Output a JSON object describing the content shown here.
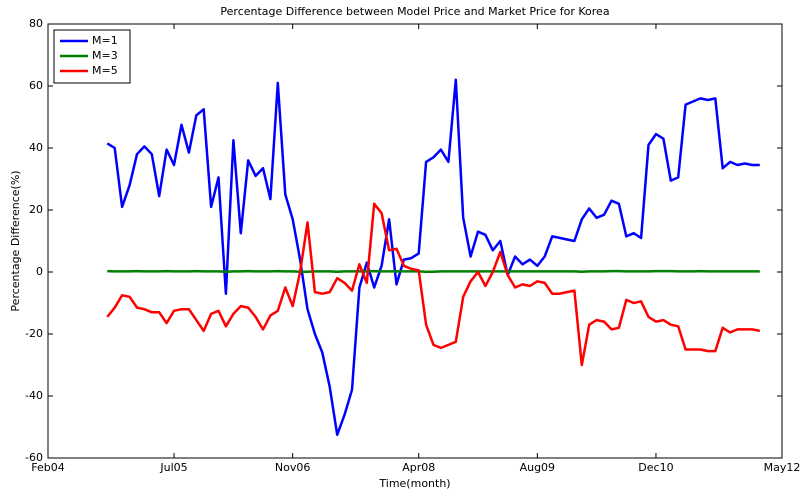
{
  "chart_data": {
    "type": "line",
    "title": "Percentage Difference between Model Price and Market Price for Korea",
    "xlabel": "Time(month)",
    "ylabel": "Percentage Difference(%)",
    "x": [
      "2004-10",
      "2004-11",
      "2004-12",
      "2005-01",
      "2005-02",
      "2005-03",
      "2005-04",
      "2005-05",
      "2005-06",
      "2005-07",
      "2005-08",
      "2005-09",
      "2005-10",
      "2005-11",
      "2005-12",
      "2006-01",
      "2006-02",
      "2006-03",
      "2006-04",
      "2006-05",
      "2006-06",
      "2006-07",
      "2006-08",
      "2006-09",
      "2006-10",
      "2006-11",
      "2006-12",
      "2007-01",
      "2007-02",
      "2007-03",
      "2007-04",
      "2007-05",
      "2007-06",
      "2007-07",
      "2007-08",
      "2007-09",
      "2007-10",
      "2007-11",
      "2007-12",
      "2008-01",
      "2008-02",
      "2008-03",
      "2008-04",
      "2008-05",
      "2008-06",
      "2008-07",
      "2008-08",
      "2008-09",
      "2008-10",
      "2008-11",
      "2008-12",
      "2009-01",
      "2009-02",
      "2009-03",
      "2009-04",
      "2009-05",
      "2009-06",
      "2009-07",
      "2009-08",
      "2009-09",
      "2009-10",
      "2009-11",
      "2009-12",
      "2010-01",
      "2010-02",
      "2010-03",
      "2010-04",
      "2010-05",
      "2010-06",
      "2010-07",
      "2010-08",
      "2010-09",
      "2010-10",
      "2010-11",
      "2010-12",
      "2011-01",
      "2011-02",
      "2011-03",
      "2011-04",
      "2011-05",
      "2011-06",
      "2011-07",
      "2011-08",
      "2011-09",
      "2011-10",
      "2011-11",
      "2011-12",
      "2012-01",
      "2012-02"
    ],
    "series": [
      {
        "name": "M=1",
        "color": "#0000ff",
        "values": [
          41.5,
          40,
          21,
          28,
          38,
          40.5,
          38,
          24.5,
          39.5,
          34.5,
          47.5,
          38.5,
          50.5,
          52.5,
          21,
          30.5,
          -7,
          42.5,
          12.5,
          36,
          31,
          33.5,
          23.5,
          61,
          25,
          17,
          4,
          -12,
          -20,
          -26,
          -37,
          -52.5,
          -46,
          -38,
          -5,
          3,
          -5,
          2,
          17,
          -4,
          4,
          4.5,
          6,
          35.5,
          37,
          39.5,
          35.5,
          62,
          17.5,
          5,
          13,
          12,
          7,
          10,
          -1,
          5,
          2.5,
          4,
          2,
          5,
          11.5,
          11,
          10.5,
          10,
          17,
          20.5,
          17.5,
          18.5,
          23,
          22,
          11.5,
          12.5,
          11,
          41,
          44.5,
          43,
          29.5,
          30.5,
          54,
          55,
          56,
          55.5,
          56,
          33.5,
          35.5,
          34.5,
          35,
          34.5,
          34.5
        ]
      },
      {
        "name": "M=3",
        "color": "#008000",
        "values": [
          0.3,
          0.2,
          0.2,
          0.2,
          0.3,
          0.2,
          0.2,
          0.2,
          0.3,
          0.2,
          0.2,
          0.2,
          0.3,
          0.2,
          0.2,
          0.2,
          0.1,
          0.2,
          0.2,
          0.3,
          0.2,
          0.2,
          0.2,
          0.3,
          0.2,
          0.2,
          0.1,
          0.1,
          0.2,
          0.2,
          0.2,
          0.1,
          0.2,
          0.2,
          0.2,
          0.2,
          0.3,
          0.2,
          0.2,
          0.2,
          0.2,
          0.2,
          0.2,
          0.1,
          0.1,
          0.2,
          0.2,
          0.2,
          0.2,
          0.2,
          0.2,
          0.2,
          0.2,
          0.2,
          0.2,
          0.2,
          0.2,
          0.2,
          0.2,
          0.2,
          0.2,
          0.2,
          0.2,
          0.2,
          0.1,
          0.2,
          0.2,
          0.2,
          0.3,
          0.3,
          0.2,
          0.2,
          0.2,
          0.2,
          0.3,
          0.3,
          0.3,
          0.2,
          0.2,
          0.2,
          0.3,
          0.2,
          0.2,
          0.2,
          0.2,
          0.2,
          0.2,
          0.2,
          0.2
        ]
      },
      {
        "name": "M=5",
        "color": "#ff0000",
        "values": [
          -14.5,
          -11.5,
          -7.5,
          -8,
          -11.5,
          -12,
          -13,
          -13,
          -16.5,
          -12.5,
          -12,
          -12,
          -15.5,
          -19,
          -13.5,
          -12.5,
          -17.5,
          -13.5,
          -11,
          -11.5,
          -14.5,
          -18.5,
          -14,
          -12.5,
          -5,
          -11,
          0,
          16,
          -6.5,
          -7,
          -6.5,
          -2,
          -3.5,
          -6,
          2.5,
          -3.5,
          22,
          19,
          7,
          7.5,
          2,
          1,
          0.5,
          -17,
          -23.5,
          -24.5,
          -23.5,
          -22.5,
          -8,
          -3,
          0,
          -4.5,
          0,
          6.5,
          -1,
          -5,
          -4,
          -4.5,
          -3,
          -3.5,
          -7,
          -7,
          -6.5,
          -6,
          -30,
          -17,
          -15.5,
          -16,
          -18.5,
          -18,
          -9,
          -10,
          -9.5,
          -14.5,
          -16,
          -15.5,
          -17,
          -17.5,
          -25,
          -25,
          -25,
          -25.5,
          -25.5,
          -18,
          -19.5,
          -18.5,
          -18.5,
          -18.5,
          -19
        ]
      }
    ],
    "xlim": [
      "2004-02",
      "2012-05"
    ],
    "xticks": [
      {
        "value": "2004-02",
        "label": "Feb04"
      },
      {
        "value": "2005-07",
        "label": "Jul05"
      },
      {
        "value": "2006-11",
        "label": "Nov06"
      },
      {
        "value": "2008-04",
        "label": "Apr08"
      },
      {
        "value": "2009-08",
        "label": "Aug09"
      },
      {
        "value": "2010-12",
        "label": "Dec10"
      },
      {
        "value": "2012-05",
        "label": "May12"
      }
    ],
    "ylim": [
      -60,
      80
    ],
    "yticks": [
      -60,
      -40,
      -20,
      0,
      20,
      40,
      60,
      80
    ],
    "legend": "upper left"
  }
}
